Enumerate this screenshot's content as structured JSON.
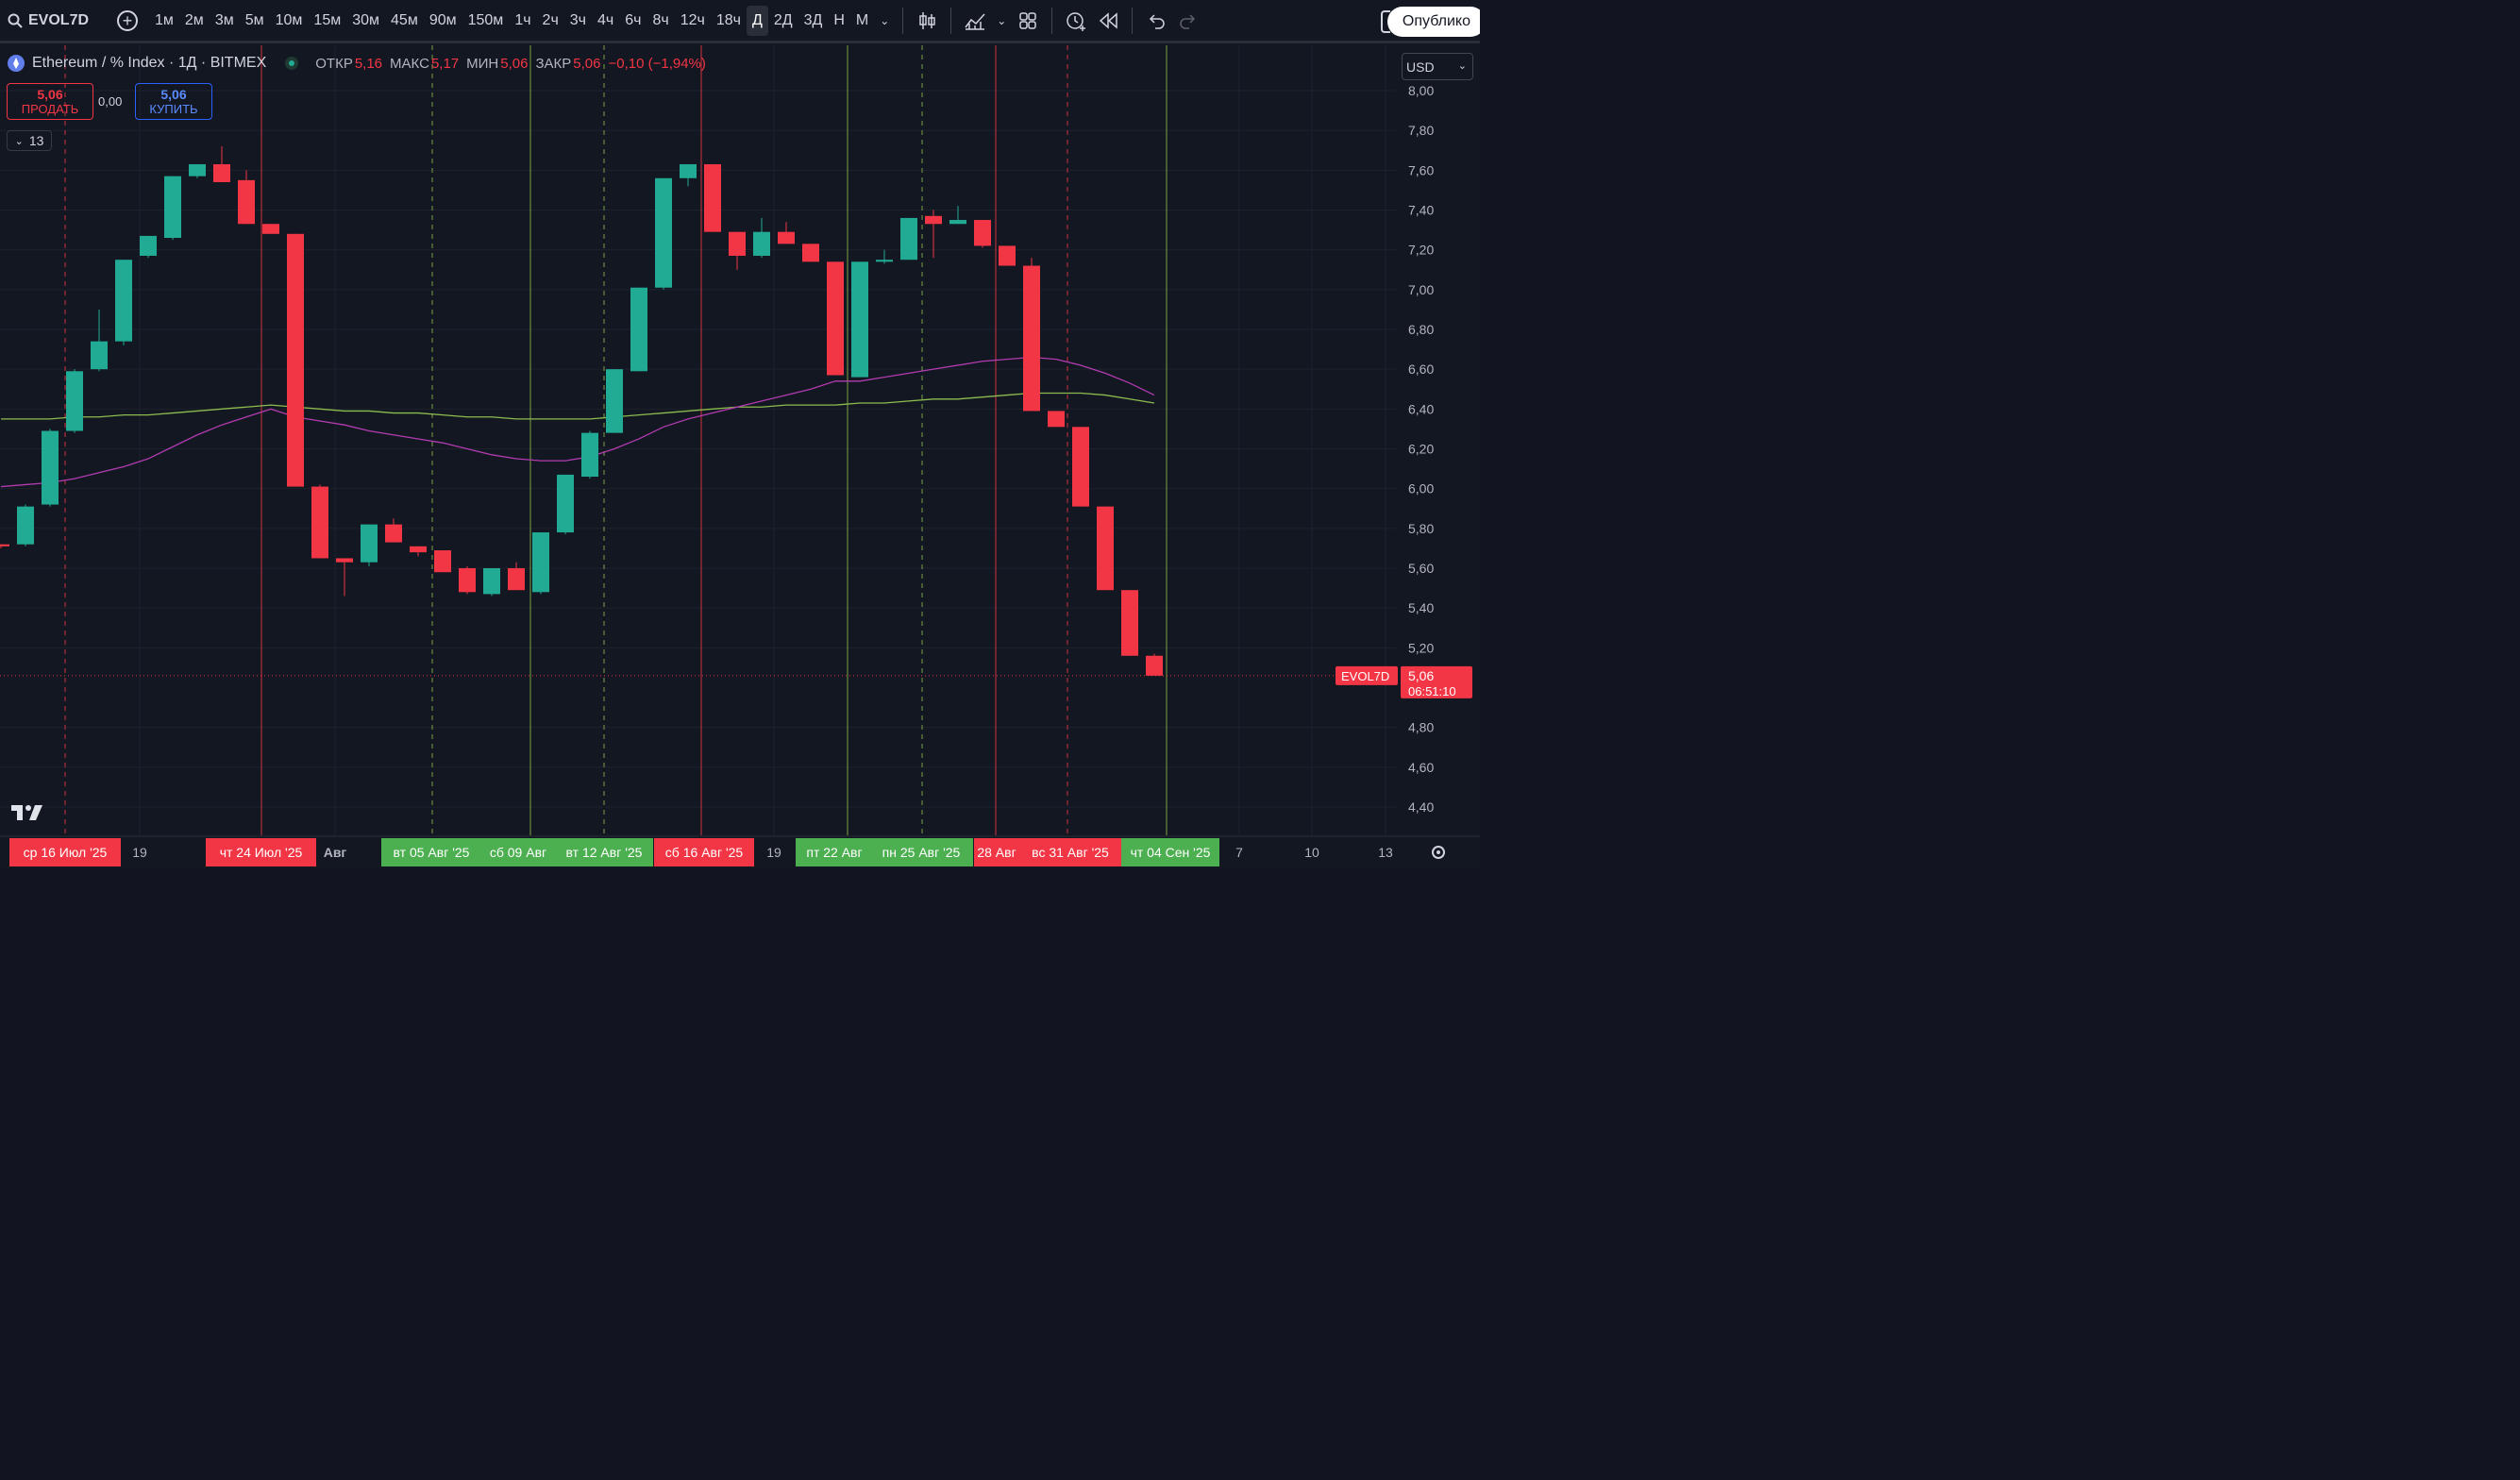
{
  "toolbar": {
    "symbol": "EVOL7D",
    "intervals": [
      "1м",
      "2м",
      "3м",
      "5м",
      "10м",
      "15м",
      "30м",
      "45м",
      "90м",
      "150м",
      "1ч",
      "2ч",
      "3ч",
      "4ч",
      "6ч",
      "8ч",
      "12ч",
      "18ч",
      "Д",
      "2Д",
      "3Д",
      "Н",
      "М"
    ],
    "active_interval": "Д",
    "publish_label": "Опублико"
  },
  "legend": {
    "title": "Ethereum / % Index · 1Д · BITMEX",
    "open_label": "ОТКР",
    "open": "5,16",
    "high_label": "МАКС",
    "high": "5,17",
    "low_label": "МИН",
    "low": "5,06",
    "close_label": "ЗАКР",
    "close": "5,06",
    "change": "−0,10 (−1,94%)"
  },
  "trade": {
    "sell_value": "5,06",
    "sell_label": "ПРОДАТЬ",
    "spread": "0,00",
    "buy_value": "5,06",
    "buy_label": "КУПИТЬ",
    "indicators_count": "13"
  },
  "currency": "USD",
  "price_badge": {
    "symbol": "EVOL7D",
    "price": "5,06",
    "countdown": "06:51:10"
  },
  "colors": {
    "up": "#22ab94",
    "down": "#f23645",
    "ma_fast": "#b23bb0",
    "ma_slow": "#8cbc4e",
    "background": "#131722"
  },
  "chart_data": {
    "type": "candlestick",
    "y_ticks": [
      "8,00",
      "7,80",
      "7,60",
      "7,40",
      "7,20",
      "7,00",
      "6,80",
      "6,60",
      "6,40",
      "6,20",
      "6,00",
      "5,80",
      "5,60",
      "5,40",
      "5,20",
      "4,80",
      "4,60",
      "4,40"
    ],
    "ylim": [
      4.35,
      8.05
    ],
    "x_tick_labels": [
      "19",
      "Авг",
      "19",
      "7",
      "10",
      "13"
    ],
    "date_badges": [
      {
        "label": "ср 16 Июл '25",
        "color": "red"
      },
      {
        "label": "чт 24 Июл '25",
        "color": "red"
      },
      {
        "label": "вт 05 Авг '25",
        "color": "green"
      },
      {
        "label": "сб 09 Авг",
        "color": "green"
      },
      {
        "label": "вт 12 Авг '25",
        "color": "green"
      },
      {
        "label": "сб 16 Авг '25",
        "color": "red"
      },
      {
        "label": "пт 22 Авг",
        "color": "green"
      },
      {
        "label": "пн 25 Авг '25",
        "color": "green"
      },
      {
        "label": "28 Авг",
        "color": "red"
      },
      {
        "label": "вс 31 Авг '25",
        "color": "red"
      },
      {
        "label": "чт 04 Сен '25",
        "color": "green"
      }
    ],
    "candles": [
      {
        "o": 5.72,
        "h": 5.72,
        "l": 5.7,
        "c": 5.71
      },
      {
        "o": 5.72,
        "h": 5.92,
        "l": 5.71,
        "c": 5.91
      },
      {
        "o": 5.92,
        "h": 6.3,
        "l": 5.91,
        "c": 6.29
      },
      {
        "o": 6.29,
        "h": 6.6,
        "l": 6.28,
        "c": 6.59
      },
      {
        "o": 6.6,
        "h": 6.9,
        "l": 6.59,
        "c": 6.74
      },
      {
        "o": 6.74,
        "h": 7.15,
        "l": 6.72,
        "c": 7.15
      },
      {
        "o": 7.17,
        "h": 7.27,
        "l": 7.16,
        "c": 7.27
      },
      {
        "o": 7.26,
        "h": 7.57,
        "l": 7.25,
        "c": 7.57
      },
      {
        "o": 7.57,
        "h": 7.63,
        "l": 7.56,
        "c": 7.63
      },
      {
        "o": 7.63,
        "h": 7.72,
        "l": 7.54,
        "c": 7.54
      },
      {
        "o": 7.55,
        "h": 7.6,
        "l": 7.33,
        "c": 7.33
      },
      {
        "o": 7.33,
        "h": 7.33,
        "l": 7.28,
        "c": 7.28
      },
      {
        "o": 7.28,
        "h": 7.28,
        "l": 6.01,
        "c": 6.01
      },
      {
        "o": 6.01,
        "h": 6.02,
        "l": 5.65,
        "c": 5.65
      },
      {
        "o": 5.65,
        "h": 5.65,
        "l": 5.46,
        "c": 5.63
      },
      {
        "o": 5.63,
        "h": 5.82,
        "l": 5.61,
        "c": 5.82
      },
      {
        "o": 5.82,
        "h": 5.85,
        "l": 5.73,
        "c": 5.73
      },
      {
        "o": 5.71,
        "h": 5.71,
        "l": 5.66,
        "c": 5.68
      },
      {
        "o": 5.69,
        "h": 5.69,
        "l": 5.58,
        "c": 5.58
      },
      {
        "o": 5.6,
        "h": 5.61,
        "l": 5.47,
        "c": 5.48
      },
      {
        "o": 5.47,
        "h": 5.6,
        "l": 5.46,
        "c": 5.6
      },
      {
        "o": 5.6,
        "h": 5.63,
        "l": 5.49,
        "c": 5.49
      },
      {
        "o": 5.48,
        "h": 5.78,
        "l": 5.47,
        "c": 5.78
      },
      {
        "o": 5.78,
        "h": 6.07,
        "l": 5.77,
        "c": 6.07
      },
      {
        "o": 6.06,
        "h": 6.29,
        "l": 6.05,
        "c": 6.28
      },
      {
        "o": 6.28,
        "h": 6.6,
        "l": 6.28,
        "c": 6.6
      },
      {
        "o": 6.59,
        "h": 7.01,
        "l": 6.59,
        "c": 7.01
      },
      {
        "o": 7.01,
        "h": 7.56,
        "l": 7.0,
        "c": 7.56
      },
      {
        "o": 7.56,
        "h": 7.63,
        "l": 7.52,
        "c": 7.63
      },
      {
        "o": 7.63,
        "h": 7.63,
        "l": 7.29,
        "c": 7.29
      },
      {
        "o": 7.29,
        "h": 7.29,
        "l": 7.1,
        "c": 7.17
      },
      {
        "o": 7.17,
        "h": 7.36,
        "l": 7.16,
        "c": 7.29
      },
      {
        "o": 7.29,
        "h": 7.34,
        "l": 7.23,
        "c": 7.23
      },
      {
        "o": 7.23,
        "h": 7.23,
        "l": 7.14,
        "c": 7.14
      },
      {
        "o": 7.14,
        "h": 7.14,
        "l": 6.57,
        "c": 6.57
      },
      {
        "o": 6.56,
        "h": 7.14,
        "l": 6.56,
        "c": 7.14
      },
      {
        "o": 7.14,
        "h": 7.2,
        "l": 7.13,
        "c": 7.15
      },
      {
        "o": 7.15,
        "h": 7.36,
        "l": 7.15,
        "c": 7.36
      },
      {
        "o": 7.37,
        "h": 7.4,
        "l": 7.16,
        "c": 7.33
      },
      {
        "o": 7.33,
        "h": 7.42,
        "l": 7.33,
        "c": 7.35
      },
      {
        "o": 7.35,
        "h": 7.35,
        "l": 7.21,
        "c": 7.22
      },
      {
        "o": 7.22,
        "h": 7.22,
        "l": 7.12,
        "c": 7.12
      },
      {
        "o": 7.12,
        "h": 7.16,
        "l": 6.39,
        "c": 6.39
      },
      {
        "o": 6.39,
        "h": 6.39,
        "l": 6.31,
        "c": 6.31
      },
      {
        "o": 6.31,
        "h": 6.31,
        "l": 5.91,
        "c": 5.91
      },
      {
        "o": 5.91,
        "h": 5.91,
        "l": 5.49,
        "c": 5.49
      },
      {
        "o": 5.49,
        "h": 5.49,
        "l": 5.16,
        "c": 5.16
      },
      {
        "o": 5.16,
        "h": 5.17,
        "l": 5.06,
        "c": 5.06
      }
    ],
    "ma_fast": [
      6.01,
      6.02,
      6.03,
      6.05,
      6.08,
      6.11,
      6.15,
      6.21,
      6.27,
      6.32,
      6.36,
      6.4,
      6.36,
      6.34,
      6.32,
      6.29,
      6.27,
      6.25,
      6.23,
      6.2,
      6.17,
      6.15,
      6.14,
      6.14,
      6.16,
      6.2,
      6.25,
      6.31,
      6.35,
      6.38,
      6.41,
      6.44,
      6.47,
      6.5,
      6.54,
      6.54,
      6.56,
      6.58,
      6.6,
      6.62,
      6.64,
      6.65,
      6.66,
      6.65,
      6.62,
      6.58,
      6.53,
      6.47
    ],
    "ma_slow": [
      6.35,
      6.35,
      6.35,
      6.36,
      6.36,
      6.37,
      6.37,
      6.38,
      6.39,
      6.4,
      6.41,
      6.42,
      6.41,
      6.4,
      6.39,
      6.39,
      6.38,
      6.38,
      6.37,
      6.36,
      6.36,
      6.35,
      6.35,
      6.35,
      6.35,
      6.36,
      6.37,
      6.38,
      6.39,
      6.4,
      6.41,
      6.41,
      6.42,
      6.42,
      6.42,
      6.43,
      6.43,
      6.44,
      6.45,
      6.45,
      6.46,
      6.47,
      6.48,
      6.48,
      6.48,
      6.47,
      6.45,
      6.43
    ]
  }
}
